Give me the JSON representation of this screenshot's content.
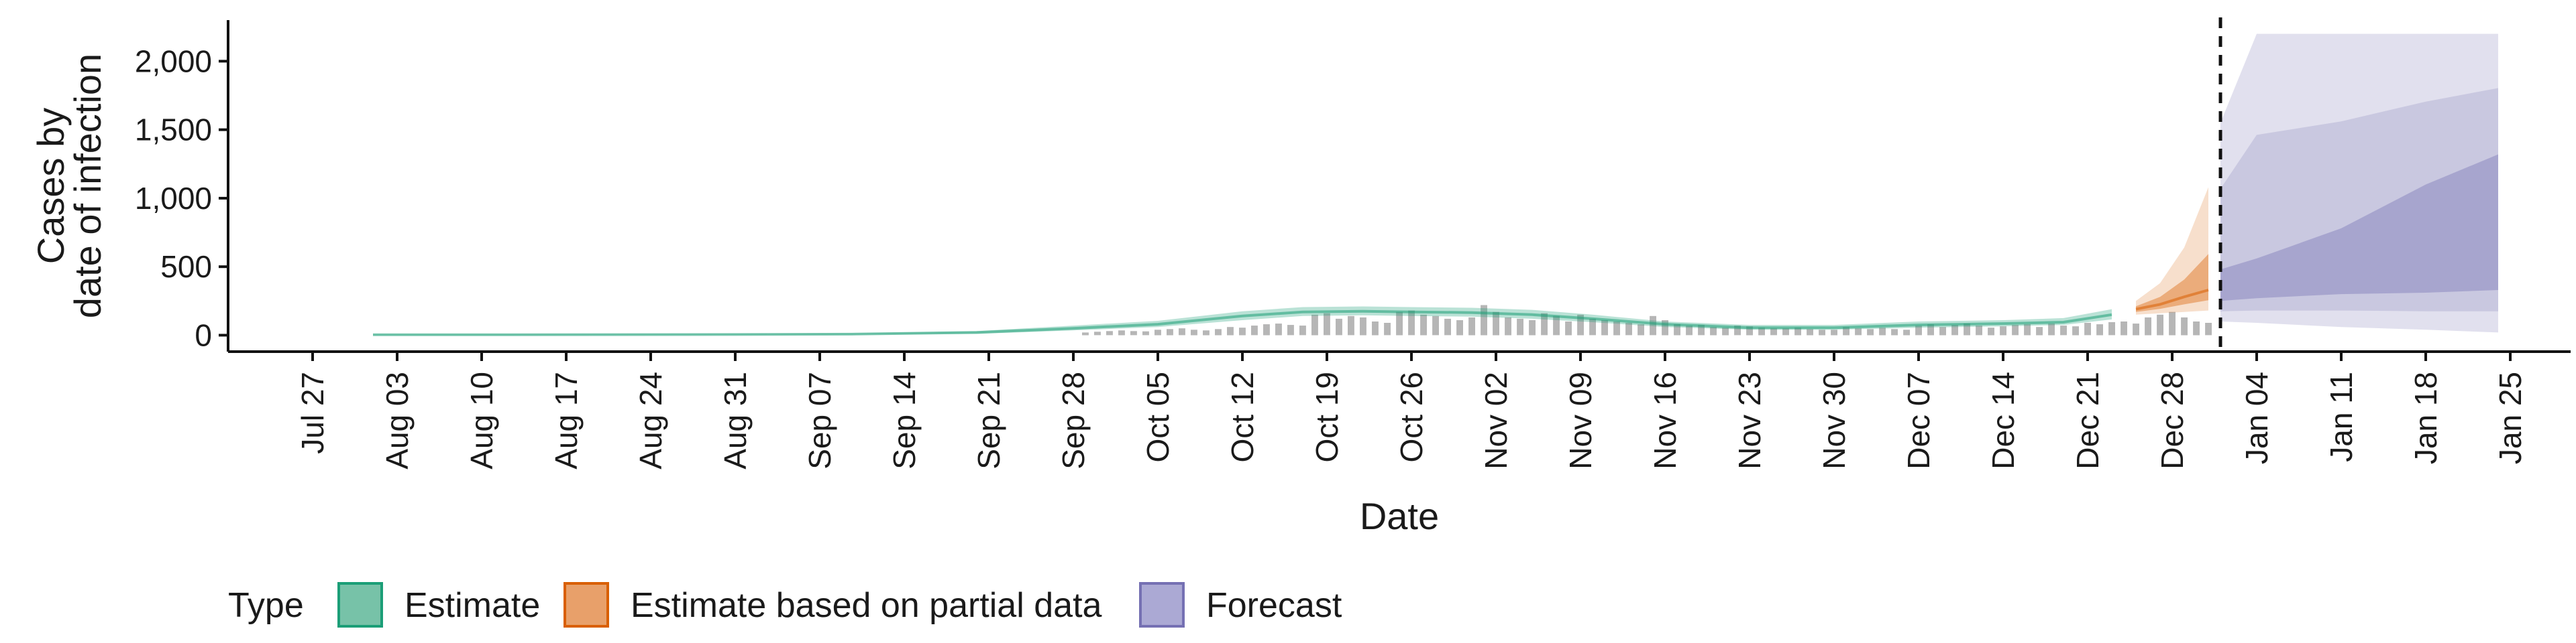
{
  "chart_data": {
    "type": "line",
    "title": "",
    "xlabel": "Date",
    "ylabel": [
      "Cases by",
      "date of infection"
    ],
    "ylim": [
      -120,
      2300
    ],
    "y_ticks": [
      0,
      500,
      1000,
      1500,
      2000
    ],
    "y_tick_labels": [
      "0",
      "500",
      "1,000",
      "1,500",
      "2,000"
    ],
    "x_range": [
      "2020-07-20",
      "2021-01-30"
    ],
    "x_ticks": [
      "2020-07-27",
      "2020-08-03",
      "2020-08-10",
      "2020-08-17",
      "2020-08-24",
      "2020-08-31",
      "2020-09-07",
      "2020-09-14",
      "2020-09-21",
      "2020-09-28",
      "2020-10-05",
      "2020-10-12",
      "2020-10-19",
      "2020-10-26",
      "2020-11-02",
      "2020-11-09",
      "2020-11-16",
      "2020-11-23",
      "2020-11-30",
      "2020-12-07",
      "2020-12-14",
      "2020-12-21",
      "2020-12-28",
      "2021-01-04",
      "2021-01-11",
      "2021-01-18",
      "2021-01-25"
    ],
    "x_tick_labels": [
      "Jul 27",
      "Aug 03",
      "Aug 10",
      "Aug 17",
      "Aug 24",
      "Aug 31",
      "Sep 07",
      "Sep 14",
      "Sep 21",
      "Sep 28",
      "Oct 05",
      "Oct 12",
      "Oct 19",
      "Oct 26",
      "Nov 02",
      "Nov 09",
      "Nov 16",
      "Nov 23",
      "Nov 30",
      "Dec 07",
      "Dec 14",
      "Dec 21",
      "Dec 28",
      "Jan 04",
      "Jan 11",
      "Jan 18",
      "Jan 25"
    ],
    "forecast_start": "2021-01-01",
    "grid": false,
    "legend": {
      "title": "Type",
      "position": "bottom",
      "entries": [
        {
          "label": "Estimate",
          "color": "#1b9e77"
        },
        {
          "label": "Estimate based on partial data",
          "color": "#d95f02"
        },
        {
          "label": "Forecast",
          "color": "#7570b3"
        }
      ]
    },
    "observed_cases": {
      "dates": [
        "2020-09-29",
        "2020-09-30",
        "2020-10-01",
        "2020-10-02",
        "2020-10-03",
        "2020-10-04",
        "2020-10-05",
        "2020-10-06",
        "2020-10-07",
        "2020-10-08",
        "2020-10-09",
        "2020-10-10",
        "2020-10-11",
        "2020-10-12",
        "2020-10-13",
        "2020-10-14",
        "2020-10-15",
        "2020-10-16",
        "2020-10-17",
        "2020-10-18",
        "2020-10-19",
        "2020-10-20",
        "2020-10-21",
        "2020-10-22",
        "2020-10-23",
        "2020-10-24",
        "2020-10-25",
        "2020-10-26",
        "2020-10-27",
        "2020-10-28",
        "2020-10-29",
        "2020-10-30",
        "2020-10-31",
        "2020-11-01",
        "2020-11-02",
        "2020-11-03",
        "2020-11-04",
        "2020-11-05",
        "2020-11-06",
        "2020-11-07",
        "2020-11-08",
        "2020-11-09",
        "2020-11-10",
        "2020-11-11",
        "2020-11-12",
        "2020-11-13",
        "2020-11-14",
        "2020-11-15",
        "2020-11-16",
        "2020-11-17",
        "2020-11-18",
        "2020-11-19",
        "2020-11-20",
        "2020-11-21",
        "2020-11-22",
        "2020-11-23",
        "2020-11-24",
        "2020-11-25",
        "2020-11-26",
        "2020-11-27",
        "2020-11-28",
        "2020-11-29",
        "2020-11-30",
        "2020-12-01",
        "2020-12-02",
        "2020-12-03",
        "2020-12-04",
        "2020-12-05",
        "2020-12-06",
        "2020-12-07",
        "2020-12-08",
        "2020-12-09",
        "2020-12-10",
        "2020-12-11",
        "2020-12-12",
        "2020-12-13",
        "2020-12-14",
        "2020-12-15",
        "2020-12-16",
        "2020-12-17",
        "2020-12-18",
        "2020-12-19",
        "2020-12-20",
        "2020-12-21",
        "2020-12-22",
        "2020-12-23",
        "2020-12-24",
        "2020-12-25",
        "2020-12-26",
        "2020-12-27",
        "2020-12-28",
        "2020-12-29",
        "2020-12-30",
        "2020-12-31"
      ],
      "values": [
        20,
        25,
        30,
        35,
        30,
        28,
        40,
        45,
        50,
        40,
        35,
        45,
        60,
        55,
        70,
        80,
        85,
        75,
        70,
        150,
        160,
        120,
        140,
        130,
        100,
        90,
        170,
        180,
        150,
        140,
        120,
        110,
        130,
        220,
        170,
        130,
        120,
        110,
        160,
        140,
        100,
        150,
        120,
        110,
        100,
        90,
        80,
        140,
        110,
        80,
        70,
        75,
        60,
        55,
        70,
        65,
        55,
        50,
        50,
        55,
        45,
        40,
        40,
        60,
        50,
        45,
        55,
        45,
        40,
        70,
        80,
        60,
        75,
        85,
        70,
        55,
        65,
        75,
        80,
        60,
        85,
        70,
        65,
        90,
        80,
        95,
        100,
        85,
        130,
        150,
        170,
        130,
        100,
        90
      ]
    },
    "estimate": {
      "dates": [
        "2020-08-01",
        "2020-08-10",
        "2020-08-20",
        "2020-08-31",
        "2020-09-10",
        "2020-09-20",
        "2020-09-28",
        "2020-10-05",
        "2020-10-12",
        "2020-10-17",
        "2020-10-22",
        "2020-10-26",
        "2020-10-31",
        "2020-11-05",
        "2020-11-10",
        "2020-11-16",
        "2020-11-23",
        "2020-11-30",
        "2020-12-07",
        "2020-12-14",
        "2020-12-19",
        "2020-12-23"
      ],
      "median": [
        3,
        3,
        4,
        5,
        8,
        20,
        50,
        80,
        140,
        170,
        175,
        170,
        165,
        150,
        120,
        80,
        55,
        55,
        75,
        85,
        95,
        150
      ],
      "lower_90": [
        0,
        0,
        1,
        2,
        4,
        10,
        35,
        60,
        110,
        140,
        145,
        140,
        135,
        120,
        95,
        60,
        40,
        40,
        55,
        65,
        75,
        115
      ],
      "upper_90": [
        8,
        8,
        9,
        10,
        14,
        30,
        70,
        105,
        175,
        205,
        210,
        205,
        200,
        185,
        150,
        100,
        75,
        75,
        100,
        110,
        125,
        190
      ]
    },
    "estimate_partial": {
      "dates": [
        "2020-12-25",
        "2020-12-27",
        "2020-12-29",
        "2020-12-31"
      ],
      "median": [
        190,
        225,
        280,
        330
      ],
      "lower_90": [
        150,
        160,
        170,
        180
      ],
      "upper_90": [
        250,
        380,
        640,
        1080
      ]
    },
    "forecast": {
      "dates": [
        "2021-01-01",
        "2021-01-04",
        "2021-01-11",
        "2021-01-18",
        "2021-01-24"
      ],
      "median": [
        370,
        420,
        500,
        560,
        640
      ],
      "lower_50": [
        250,
        270,
        300,
        310,
        330
      ],
      "upper_50": [
        480,
        560,
        780,
        1100,
        1320
      ],
      "lower_90": [
        100,
        90,
        60,
        40,
        20
      ],
      "upper_90": [
        1550,
        2200,
        2200,
        2200,
        2200
      ]
    }
  }
}
